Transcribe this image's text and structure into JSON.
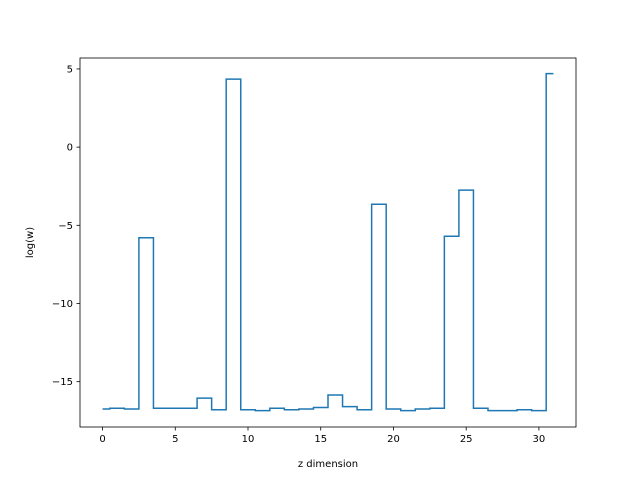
{
  "chart_data": {
    "type": "line",
    "drawstyle": "steps-mid",
    "title": "",
    "xlabel": "z dimension",
    "ylabel": "log(w)",
    "xlim": [
      -1.55,
      32.55
    ],
    "ylim": [
      -17.9,
      5.7
    ],
    "grid": false,
    "xticks": [
      0,
      5,
      10,
      15,
      20,
      25,
      30
    ],
    "xtick_labels": [
      "0",
      "5",
      "10",
      "15",
      "20",
      "25",
      "30"
    ],
    "yticks": [
      5,
      0,
      -5,
      -10,
      -15
    ],
    "ytick_labels": [
      "5",
      "0",
      "−5",
      "−10",
      "−15"
    ],
    "line_color": "#1f77b4",
    "x": [
      0,
      1,
      2,
      3,
      4,
      5,
      6,
      7,
      8,
      9,
      10,
      11,
      12,
      13,
      14,
      15,
      16,
      17,
      18,
      19,
      20,
      21,
      22,
      23,
      24,
      25,
      26,
      27,
      28,
      29,
      30,
      31
    ],
    "y": [
      -16.75,
      -16.7,
      -16.75,
      -5.8,
      -16.7,
      -16.7,
      -16.7,
      -16.05,
      -16.8,
      4.35,
      -16.8,
      -16.85,
      -16.7,
      -16.8,
      -16.75,
      -16.65,
      -15.85,
      -16.6,
      -16.8,
      -3.65,
      -16.75,
      -16.85,
      -16.75,
      -16.7,
      -5.7,
      -2.75,
      -16.7,
      -16.85,
      -16.85,
      -16.8,
      -16.85,
      4.7
    ]
  }
}
